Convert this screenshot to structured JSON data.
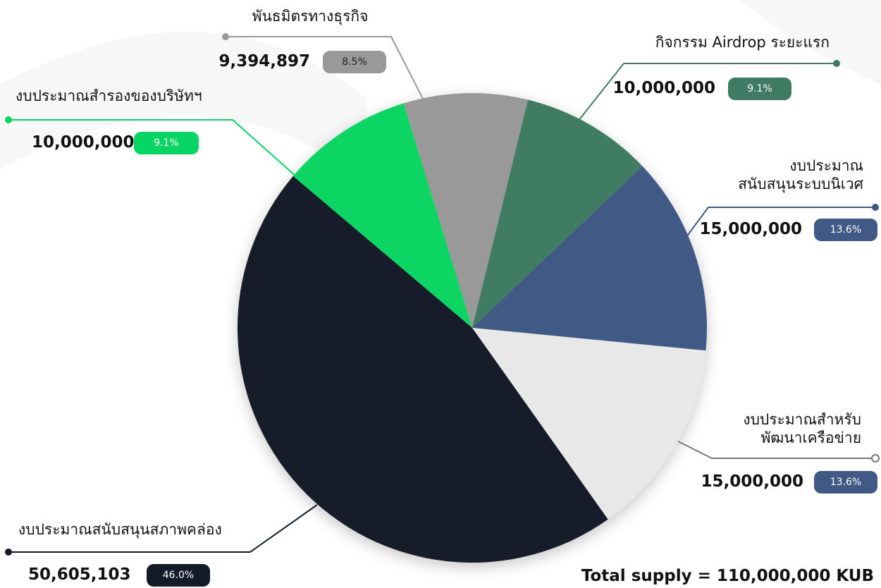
{
  "chart_data": {
    "type": "pie",
    "categories": [
      "พันธมิตรทางธุรกิจ",
      "กิจกรรม Airdrop ระยะแรก",
      "งบประมาณ\nสนับสนุนระบบนิเวศ",
      "งบประมาณสำหรับ\nพัฒนาเครือข่าย",
      "งบประมาณสนับสนุนสภาพคล่อง",
      "งบประมาณสำรองของบริษัทฯ"
    ],
    "values": [
      9394897,
      10000000,
      15000000,
      15000000,
      50605103,
      10000000
    ],
    "value_labels": [
      "9,394,897",
      "10,000,000",
      "15,000,000",
      "15,000,000",
      "50,605,103",
      "10,000,000"
    ],
    "percents": [
      8.5,
      9.1,
      13.6,
      13.6,
      46.0,
      9.1
    ],
    "percent_labels": [
      "8.5%",
      "9.1%",
      "13.6%",
      "13.6%",
      "46.0%",
      "9.1%"
    ],
    "colors": [
      "#999999",
      "#3f7b62",
      "#405a85",
      "#e8e8e8",
      "#131b29",
      "#07d563"
    ],
    "badge_colors": [
      "#999999",
      "#3f7b62",
      "#405a85",
      "#405a85",
      "#131b29",
      "#07d563"
    ],
    "annotation": "Total supply = 110,000,000 KUB"
  }
}
